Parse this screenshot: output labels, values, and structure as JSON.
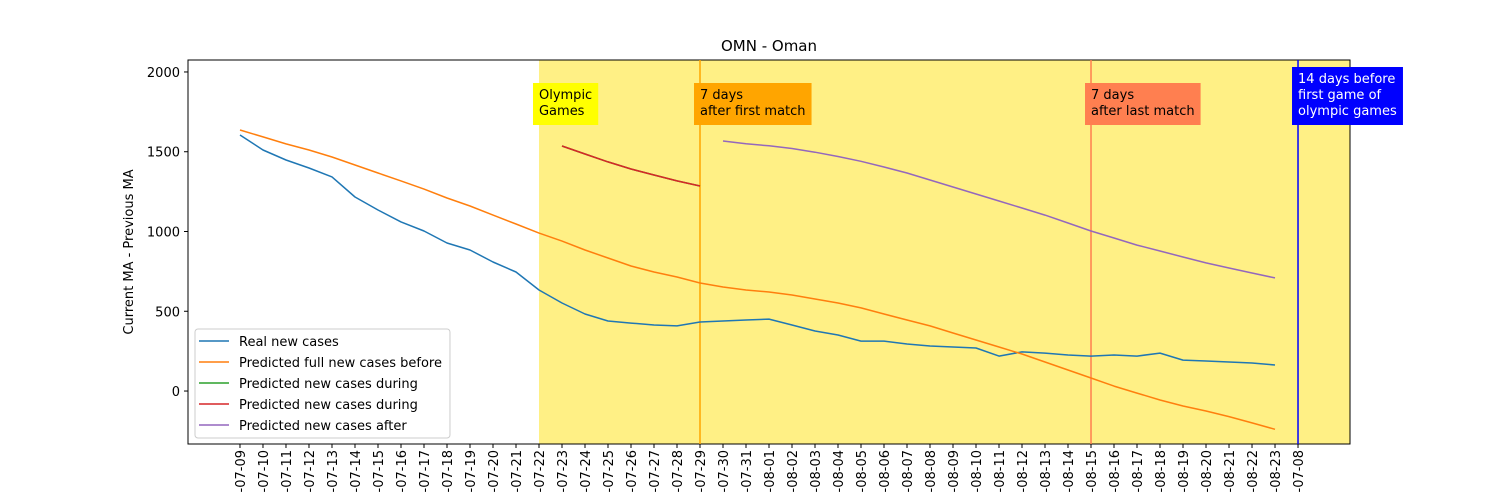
{
  "chart_data": {
    "type": "line",
    "title": "OMN - Oman",
    "y_label": "Current MA - Previous MA",
    "categories": [
      "-07-09",
      "-07-10",
      "-07-11",
      "-07-12",
      "-07-13",
      "-07-14",
      "-07-15",
      "-07-16",
      "-07-17",
      "-07-18",
      "-07-19",
      "-07-20",
      "-07-21",
      "-07-22",
      "-07-23",
      "-07-24",
      "-07-25",
      "-07-26",
      "-07-27",
      "-07-28",
      "-07-29",
      "-07-30",
      "-07-31",
      "-08-01",
      "-08-02",
      "-08-03",
      "-08-04",
      "-08-05",
      "-08-06",
      "-08-07",
      "-08-08",
      "-08-09",
      "-08-10",
      "-08-11",
      "-08-12",
      "-08-13",
      "-08-14",
      "-08-15",
      "-08-16",
      "-08-17",
      "-08-18",
      "-08-19",
      "-08-20",
      "-08-21",
      "-08-22",
      "-08-23",
      "-07-08"
    ],
    "series": [
      {
        "name": "Real new cases",
        "color": "#1f77b4",
        "values": [
          1605,
          1511,
          1448,
          1398,
          1342,
          1216,
          1135,
          1060,
          1003,
          928,
          884,
          809,
          746,
          633,
          552,
          483,
          439,
          426,
          414,
          408,
          433,
          439,
          445,
          451,
          414,
          376,
          351,
          313,
          313,
          295,
          282,
          276,
          270,
          219,
          245,
          238,
          226,
          219,
          226,
          219,
          238,
          194,
          188,
          182,
          176,
          163,
          null
        ]
      },
      {
        "name": "Predicted full new cases before",
        "color": "#ff7f0e",
        "values": [
          1636,
          1593,
          1549,
          1511,
          1467,
          1417,
          1367,
          1317,
          1266,
          1210,
          1160,
          1103,
          1047,
          990,
          940,
          884,
          834,
          784,
          746,
          715,
          677,
          652,
          633,
          621,
          602,
          577,
          552,
          521,
          483,
          445,
          408,
          364,
          320,
          276,
          232,
          182,
          132,
          82,
          31,
          -13,
          -56,
          -94,
          -125,
          -160,
          -200,
          -240,
          null
        ]
      },
      {
        "name": "Predicted new cases during",
        "color": "#2ca02c",
        "values": [
          null,
          null,
          null,
          null,
          null,
          null,
          null,
          null,
          null,
          null,
          null,
          null,
          null,
          null,
          1536,
          1486,
          1436,
          1392,
          1354,
          1317,
          1285,
          null,
          null,
          null,
          null,
          null,
          null,
          null,
          null,
          null,
          null,
          null,
          null,
          null,
          null,
          null,
          null,
          null,
          null,
          null,
          null,
          null,
          null,
          null,
          null,
          null,
          null
        ]
      },
      {
        "name": "Predicted new cases during",
        "color": "#d62728",
        "values": [
          null,
          null,
          null,
          null,
          null,
          null,
          null,
          null,
          null,
          null,
          null,
          null,
          null,
          null,
          1536,
          1486,
          1436,
          1392,
          1354,
          1317,
          1285,
          null,
          null,
          null,
          null,
          null,
          null,
          null,
          null,
          null,
          null,
          null,
          null,
          null,
          null,
          null,
          null,
          null,
          null,
          null,
          null,
          null,
          null,
          null,
          null,
          null,
          null
        ]
      },
      {
        "name": "Predicted new cases after",
        "color": "#9467bd",
        "values": [
          null,
          null,
          null,
          null,
          null,
          null,
          null,
          null,
          null,
          null,
          null,
          null,
          null,
          null,
          null,
          null,
          null,
          null,
          null,
          null,
          null,
          1567,
          1550,
          1537,
          1520,
          1497,
          1470,
          1440,
          1404,
          1367,
          1323,
          1279,
          1235,
          1191,
          1147,
          1103,
          1053,
          1003,
          959,
          915,
          878,
          840,
          803,
          771,
          740,
          709,
          null
        ]
      }
    ],
    "ylim": [
      -332,
      2075
    ],
    "yticks": [
      0,
      500,
      1000,
      1500,
      2000
    ],
    "grid": false,
    "legend": "lower left",
    "span": {
      "from": "-07-22",
      "color": "#fff085"
    },
    "vlines": [
      {
        "x": "-07-29",
        "color": "#ffa500"
      },
      {
        "x": "-08-15",
        "color": "#ff7f50"
      },
      {
        "x": "-07-08",
        "color": "#0000ff"
      }
    ],
    "annotations": [
      {
        "x": "-07-22",
        "lines": [
          "Olympic",
          "Games"
        ],
        "background": "#ffff00",
        "color": "#000000"
      },
      {
        "x": "-07-29",
        "lines": [
          "7 days",
          "after first match"
        ],
        "background": "#ffa500",
        "color": "#000000"
      },
      {
        "x": "-08-15",
        "lines": [
          "7 days",
          "after last match"
        ],
        "background": "#ff7f50",
        "color": "#000000"
      },
      {
        "x": "-07-08",
        "lines": [
          "14 days before",
          "first game of",
          "olympic games"
        ],
        "background": "#0000ff",
        "color": "#ffffff"
      }
    ]
  }
}
